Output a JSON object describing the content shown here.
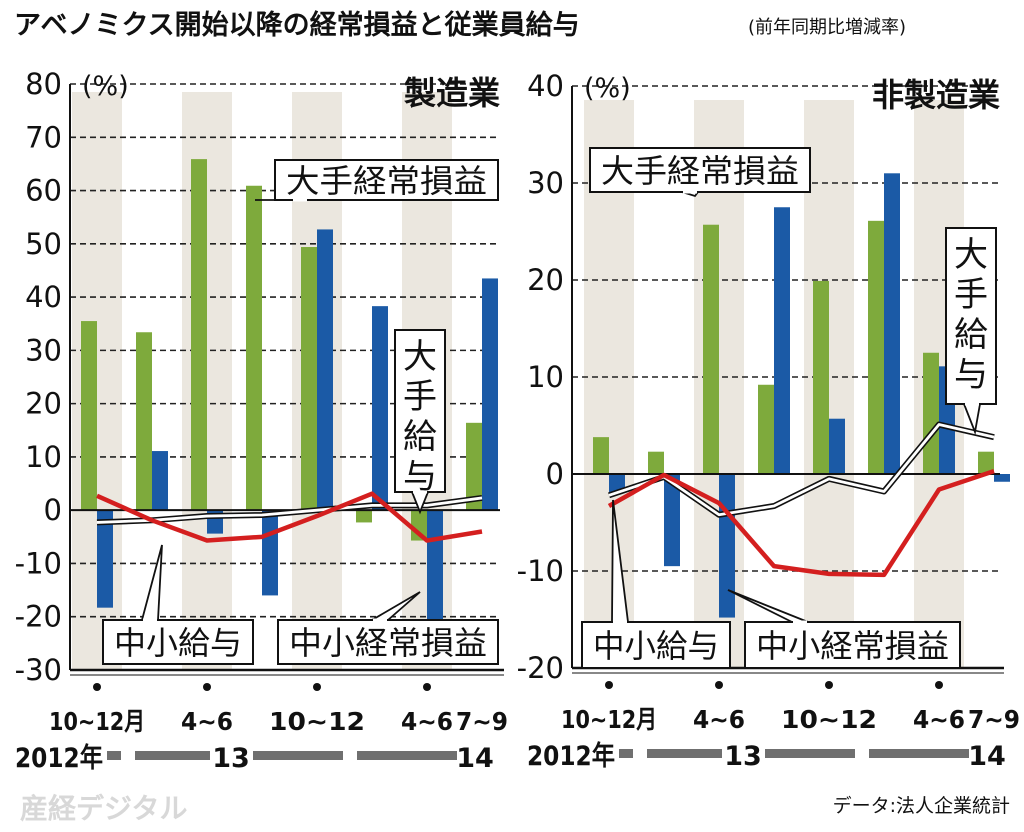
{
  "title": "アベノミクス開始以降の経常損益と従業員給与",
  "subtitle": "(前年同期比増減率)",
  "source": "データ:法人企業統計",
  "watermark": "産経デジタル",
  "colors": {
    "large_profit": "#7eaa3c",
    "small_profit": "#1b5aa6",
    "small_wage": "#d41f1f",
    "large_wage": "#ffffff",
    "band": "#ebe7df"
  },
  "chart_data": [
    {
      "type": "bar",
      "title": "製造業",
      "unit": "(%)",
      "ylim": [
        -30,
        80
      ],
      "yticks": [
        80,
        70,
        60,
        50,
        40,
        30,
        20,
        10,
        0,
        -10,
        -20,
        -30
      ],
      "grid": true,
      "categories": [
        "2012/10~12",
        "2013/1~3",
        "2013/4~6",
        "2013/7~9",
        "2013/10~12",
        "2014/1~3",
        "2014/4~6",
        "2014/7~9"
      ],
      "xtick_labels": [
        "10~12月",
        "",
        "4~6",
        "",
        "10~12",
        "",
        "4~6",
        "7~9"
      ],
      "year_labels": [
        "2012年",
        "13",
        "14"
      ],
      "series": [
        {
          "name": "大手経常損益",
          "kind": "bar",
          "values": [
            35.5,
            33.4,
            65.9,
            60.9,
            49.4,
            -2.3,
            -5.7,
            16.4
          ]
        },
        {
          "name": "中小経常損益",
          "kind": "bar",
          "values": [
            -18.3,
            11.1,
            -4.4,
            -16.0,
            52.7,
            38.3,
            -20.5,
            43.5
          ]
        },
        {
          "name": "大手給与",
          "kind": "line",
          "values": [
            -2.3,
            -1.9,
            -1.1,
            -0.9,
            0.0,
            0.9,
            0.9,
            2.3
          ]
        },
        {
          "name": "中小給与",
          "kind": "line",
          "values": [
            2.7,
            -1.9,
            -5.7,
            -5.0,
            -1.1,
            3.1,
            -5.7,
            -4.0
          ]
        }
      ]
    },
    {
      "type": "bar",
      "title": "非製造業",
      "unit": "(%)",
      "ylim": [
        -20,
        40
      ],
      "yticks": [
        40,
        30,
        20,
        10,
        0,
        -10,
        -20
      ],
      "grid": true,
      "categories": [
        "2012/10~12",
        "2013/1~3",
        "2013/4~6",
        "2013/7~9",
        "2013/10~12",
        "2014/1~3",
        "2014/4~6",
        "2014/7~9"
      ],
      "xtick_labels": [
        "10~12月",
        "",
        "4~6",
        "",
        "10~12",
        "",
        "4~6",
        "7~9"
      ],
      "year_labels": [
        "2012年",
        "13",
        "14"
      ],
      "series": [
        {
          "name": "大手経常損益",
          "kind": "bar",
          "values": [
            3.8,
            2.3,
            25.7,
            9.2,
            19.9,
            26.1,
            12.5,
            2.3
          ]
        },
        {
          "name": "中小経常損益",
          "kind": "bar",
          "values": [
            -1.9,
            -9.5,
            -14.8,
            27.5,
            5.7,
            31.0,
            11.1,
            -0.8
          ]
        },
        {
          "name": "大手給与",
          "kind": "line",
          "values": [
            -2.2,
            -0.3,
            -4.2,
            -3.3,
            -0.5,
            -1.8,
            5.1,
            3.8
          ]
        },
        {
          "name": "中小給与",
          "kind": "line",
          "values": [
            -3.3,
            -0.1,
            -3.0,
            -9.5,
            -10.3,
            -10.4,
            -1.6,
            0.3
          ]
        }
      ]
    }
  ]
}
